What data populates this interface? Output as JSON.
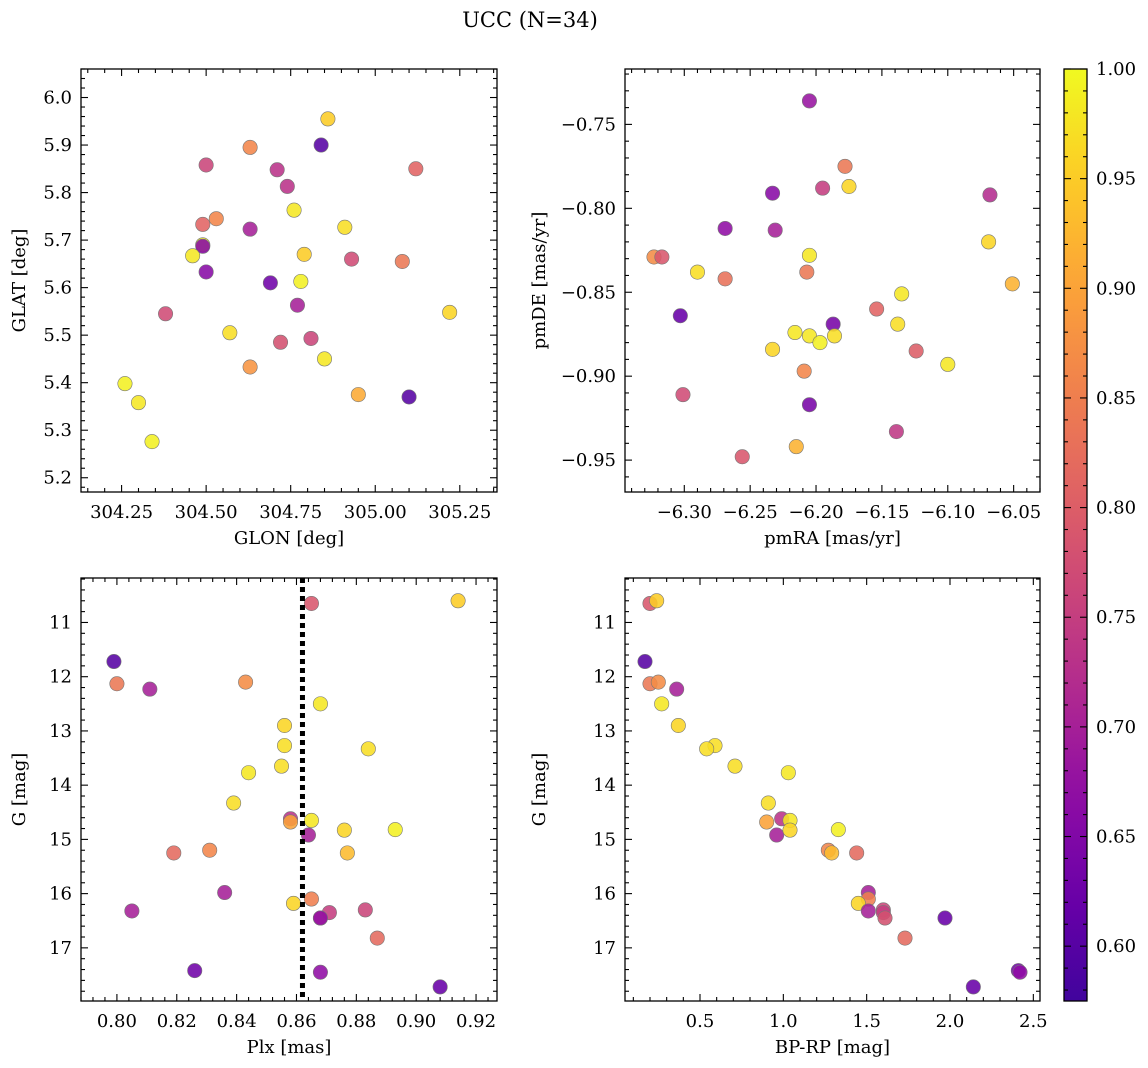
{
  "figure": {
    "title": "UCC (N=34)"
  },
  "colormap": "plasma",
  "colorbar": {
    "range": [
      0.575,
      1.0
    ],
    "ticks": [
      0.6,
      0.65,
      0.7,
      0.75,
      0.8,
      0.85,
      0.9,
      0.95,
      1.0
    ],
    "tick_labels": [
      "0.60",
      "0.65",
      "0.70",
      "0.75",
      "0.80",
      "0.85",
      "0.90",
      "0.95",
      "1.00"
    ]
  },
  "chart_data": [
    {
      "type": "scatter",
      "xlabel": "GLON [deg]",
      "ylabel": "GLAT [deg]",
      "xlim": [
        304.13,
        305.36
      ],
      "ylim": [
        5.17,
        6.06
      ],
      "xticks": [
        304.25,
        304.5,
        304.75,
        305.0,
        305.25
      ],
      "xtick_labels": [
        "304.25",
        "304.50",
        "304.75",
        "305.00",
        "305.25"
      ],
      "yticks": [
        5.2,
        5.3,
        5.4,
        5.5,
        5.6,
        5.7,
        5.8,
        5.9,
        6.0
      ],
      "ytick_labels": [
        "5.2",
        "5.3",
        "5.4",
        "5.5",
        "5.6",
        "5.7",
        "5.8",
        "5.9",
        "6.0"
      ],
      "invert_y": false,
      "points": [
        {
          "x": 304.86,
          "y": 5.955,
          "c": 0.95
        },
        {
          "x": 304.84,
          "y": 5.9,
          "c": 0.6
        },
        {
          "x": 304.63,
          "y": 5.895,
          "c": 0.86
        },
        {
          "x": 304.5,
          "y": 5.858,
          "c": 0.76
        },
        {
          "x": 305.12,
          "y": 5.85,
          "c": 0.81
        },
        {
          "x": 304.71,
          "y": 5.848,
          "c": 0.73
        },
        {
          "x": 304.74,
          "y": 5.813,
          "c": 0.73
        },
        {
          "x": 304.76,
          "y": 5.763,
          "c": 0.98
        },
        {
          "x": 304.53,
          "y": 5.745,
          "c": 0.86
        },
        {
          "x": 304.49,
          "y": 5.733,
          "c": 0.81
        },
        {
          "x": 304.91,
          "y": 5.727,
          "c": 0.97
        },
        {
          "x": 304.63,
          "y": 5.723,
          "c": 0.7
        },
        {
          "x": 304.49,
          "y": 5.69,
          "c": 0.99
        },
        {
          "x": 304.49,
          "y": 5.687,
          "c": 0.66
        },
        {
          "x": 304.79,
          "y": 5.67,
          "c": 0.95
        },
        {
          "x": 304.46,
          "y": 5.667,
          "c": 0.98
        },
        {
          "x": 304.93,
          "y": 5.66,
          "c": 0.77
        },
        {
          "x": 305.08,
          "y": 5.655,
          "c": 0.84
        },
        {
          "x": 304.5,
          "y": 5.633,
          "c": 0.66
        },
        {
          "x": 304.78,
          "y": 5.613,
          "c": 0.99
        },
        {
          "x": 304.69,
          "y": 5.61,
          "c": 0.63
        },
        {
          "x": 304.77,
          "y": 5.563,
          "c": 0.7
        },
        {
          "x": 305.22,
          "y": 5.548,
          "c": 0.96
        },
        {
          "x": 304.38,
          "y": 5.545,
          "c": 0.77
        },
        {
          "x": 304.57,
          "y": 5.505,
          "c": 0.97
        },
        {
          "x": 304.81,
          "y": 5.493,
          "c": 0.76
        },
        {
          "x": 304.72,
          "y": 5.485,
          "c": 0.78
        },
        {
          "x": 304.85,
          "y": 5.45,
          "c": 0.98
        },
        {
          "x": 304.63,
          "y": 5.433,
          "c": 0.88
        },
        {
          "x": 304.26,
          "y": 5.398,
          "c": 0.99
        },
        {
          "x": 304.95,
          "y": 5.375,
          "c": 0.91
        },
        {
          "x": 305.1,
          "y": 5.37,
          "c": 0.6
        },
        {
          "x": 304.3,
          "y": 5.358,
          "c": 0.98
        },
        {
          "x": 304.34,
          "y": 5.276,
          "c": 0.99
        }
      ]
    },
    {
      "type": "scatter",
      "xlabel": "pmRA [mas/yr]",
      "ylabel": "pmDE [mas/yr]",
      "xlim": [
        -6.345,
        -6.03
      ],
      "ylim": [
        -0.969,
        -0.717
      ],
      "xticks": [
        -6.3,
        -6.25,
        -6.2,
        -6.15,
        -6.1,
        -6.05
      ],
      "xtick_labels": [
        "−6.30",
        "−6.25",
        "−6.20",
        "−6.15",
        "−6.10",
        "−6.05"
      ],
      "yticks": [
        -0.95,
        -0.9,
        -0.85,
        -0.8,
        -0.75
      ],
      "ytick_labels": [
        "−0.95",
        "−0.90",
        "−0.85",
        "−0.80",
        "−0.75"
      ],
      "invert_y": false,
      "points": [
        {
          "x": -6.205,
          "y": -0.736,
          "c": 0.68
        },
        {
          "x": -6.178,
          "y": -0.775,
          "c": 0.84
        },
        {
          "x": -6.175,
          "y": -0.787,
          "c": 0.96
        },
        {
          "x": -6.195,
          "y": -0.788,
          "c": 0.75
        },
        {
          "x": -6.233,
          "y": -0.791,
          "c": 0.66
        },
        {
          "x": -6.068,
          "y": -0.792,
          "c": 0.72
        },
        {
          "x": -6.269,
          "y": -0.812,
          "c": 0.67
        },
        {
          "x": -6.231,
          "y": -0.813,
          "c": 0.7
        },
        {
          "x": -6.069,
          "y": -0.82,
          "c": 0.96
        },
        {
          "x": -6.323,
          "y": -0.829,
          "c": 0.87
        },
        {
          "x": -6.317,
          "y": -0.829,
          "c": 0.79
        },
        {
          "x": -6.205,
          "y": -0.828,
          "c": 0.98
        },
        {
          "x": -6.207,
          "y": -0.838,
          "c": 0.84
        },
        {
          "x": -6.29,
          "y": -0.838,
          "c": 0.97
        },
        {
          "x": -6.269,
          "y": -0.842,
          "c": 0.83
        },
        {
          "x": -6.051,
          "y": -0.845,
          "c": 0.92
        },
        {
          "x": -6.135,
          "y": -0.851,
          "c": 0.98
        },
        {
          "x": -6.154,
          "y": -0.86,
          "c": 0.81
        },
        {
          "x": -6.303,
          "y": -0.864,
          "c": 0.62
        },
        {
          "x": -6.187,
          "y": -0.869,
          "c": 0.64
        },
        {
          "x": -6.138,
          "y": -0.869,
          "c": 0.97
        },
        {
          "x": -6.216,
          "y": -0.874,
          "c": 0.98
        },
        {
          "x": -6.205,
          "y": -0.876,
          "c": 0.98
        },
        {
          "x": -6.186,
          "y": -0.876,
          "c": 0.97
        },
        {
          "x": -6.197,
          "y": -0.88,
          "c": 0.99
        },
        {
          "x": -6.233,
          "y": -0.884,
          "c": 0.96
        },
        {
          "x": -6.124,
          "y": -0.885,
          "c": 0.8
        },
        {
          "x": -6.1,
          "y": -0.893,
          "c": 0.98
        },
        {
          "x": -6.209,
          "y": -0.897,
          "c": 0.86
        },
        {
          "x": -6.301,
          "y": -0.911,
          "c": 0.77
        },
        {
          "x": -6.205,
          "y": -0.917,
          "c": 0.64
        },
        {
          "x": -6.139,
          "y": -0.933,
          "c": 0.74
        },
        {
          "x": -6.215,
          "y": -0.942,
          "c": 0.92
        },
        {
          "x": -6.256,
          "y": -0.948,
          "c": 0.79
        }
      ]
    },
    {
      "type": "scatter",
      "xlabel": "Plx [mas]",
      "ylabel": "G [mag]",
      "xlim": [
        0.788,
        0.927
      ],
      "ylim": [
        10.18,
        17.98
      ],
      "xticks": [
        0.8,
        0.82,
        0.84,
        0.86,
        0.88,
        0.9,
        0.92
      ],
      "xtick_labels": [
        "0.80",
        "0.82",
        "0.84",
        "0.86",
        "0.88",
        "0.90",
        "0.92"
      ],
      "yticks": [
        11,
        12,
        13,
        14,
        15,
        16,
        17
      ],
      "ytick_labels": [
        "11",
        "12",
        "13",
        "14",
        "15",
        "16",
        "17"
      ],
      "invert_y": true,
      "vline": {
        "x": 0.862,
        "style": "dotted"
      },
      "points": [
        {
          "x": 0.914,
          "y": 10.6,
          "c": 0.95
        },
        {
          "x": 0.865,
          "y": 10.65,
          "c": 0.79
        },
        {
          "x": 0.799,
          "y": 11.72,
          "c": 0.6
        },
        {
          "x": 0.8,
          "y": 12.13,
          "c": 0.84
        },
        {
          "x": 0.843,
          "y": 12.1,
          "c": 0.87
        },
        {
          "x": 0.811,
          "y": 12.23,
          "c": 0.7
        },
        {
          "x": 0.868,
          "y": 12.5,
          "c": 0.98
        },
        {
          "x": 0.856,
          "y": 12.9,
          "c": 0.96
        },
        {
          "x": 0.856,
          "y": 13.27,
          "c": 0.97
        },
        {
          "x": 0.884,
          "y": 13.33,
          "c": 0.97
        },
        {
          "x": 0.855,
          "y": 13.65,
          "c": 0.97
        },
        {
          "x": 0.844,
          "y": 13.77,
          "c": 0.98
        },
        {
          "x": 0.839,
          "y": 14.33,
          "c": 0.97
        },
        {
          "x": 0.858,
          "y": 14.62,
          "c": 0.73
        },
        {
          "x": 0.858,
          "y": 14.68,
          "c": 0.9
        },
        {
          "x": 0.865,
          "y": 14.65,
          "c": 0.98
        },
        {
          "x": 0.864,
          "y": 14.92,
          "c": 0.7
        },
        {
          "x": 0.876,
          "y": 14.83,
          "c": 0.96
        },
        {
          "x": 0.893,
          "y": 14.82,
          "c": 0.99
        },
        {
          "x": 0.831,
          "y": 15.2,
          "c": 0.86
        },
        {
          "x": 0.819,
          "y": 15.25,
          "c": 0.82
        },
        {
          "x": 0.877,
          "y": 15.25,
          "c": 0.93
        },
        {
          "x": 0.836,
          "y": 15.98,
          "c": 0.7
        },
        {
          "x": 0.865,
          "y": 16.1,
          "c": 0.85
        },
        {
          "x": 0.859,
          "y": 16.18,
          "c": 0.96
        },
        {
          "x": 0.805,
          "y": 16.32,
          "c": 0.7
        },
        {
          "x": 0.883,
          "y": 16.3,
          "c": 0.76
        },
        {
          "x": 0.871,
          "y": 16.35,
          "c": 0.75
        },
        {
          "x": 0.868,
          "y": 16.45,
          "c": 0.78
        },
        {
          "x": 0.868,
          "y": 16.45,
          "c": 0.67
        },
        {
          "x": 0.887,
          "y": 16.82,
          "c": 0.82
        },
        {
          "x": 0.826,
          "y": 17.42,
          "c": 0.63
        },
        {
          "x": 0.868,
          "y": 17.45,
          "c": 0.67
        },
        {
          "x": 0.908,
          "y": 17.72,
          "c": 0.62
        }
      ]
    },
    {
      "type": "scatter",
      "xlabel": "BP-RP [mag]",
      "ylabel": "G [mag]",
      "xlim": [
        0.05,
        2.54
      ],
      "ylim": [
        10.18,
        17.98
      ],
      "xticks": [
        0.5,
        1.0,
        1.5,
        2.0,
        2.5
      ],
      "xtick_labels": [
        "0.5",
        "1.0",
        "1.5",
        "2.0",
        "2.5"
      ],
      "yticks": [
        11,
        12,
        13,
        14,
        15,
        16,
        17
      ],
      "ytick_labels": [
        "11",
        "12",
        "13",
        "14",
        "15",
        "16",
        "17"
      ],
      "invert_y": true,
      "points": [
        {
          "x": 0.2,
          "y": 10.65,
          "c": 0.79
        },
        {
          "x": 0.24,
          "y": 10.6,
          "c": 0.95
        },
        {
          "x": 0.17,
          "y": 11.72,
          "c": 0.6
        },
        {
          "x": 0.2,
          "y": 12.13,
          "c": 0.84
        },
        {
          "x": 0.25,
          "y": 12.1,
          "c": 0.87
        },
        {
          "x": 0.36,
          "y": 12.23,
          "c": 0.7
        },
        {
          "x": 0.27,
          "y": 12.5,
          "c": 0.98
        },
        {
          "x": 0.37,
          "y": 12.9,
          "c": 0.96
        },
        {
          "x": 0.59,
          "y": 13.27,
          "c": 0.97
        },
        {
          "x": 0.54,
          "y": 13.33,
          "c": 0.97
        },
        {
          "x": 0.71,
          "y": 13.65,
          "c": 0.97
        },
        {
          "x": 1.03,
          "y": 13.77,
          "c": 0.98
        },
        {
          "x": 0.91,
          "y": 14.33,
          "c": 0.97
        },
        {
          "x": 0.99,
          "y": 14.62,
          "c": 0.73
        },
        {
          "x": 0.9,
          "y": 14.68,
          "c": 0.9
        },
        {
          "x": 1.04,
          "y": 14.65,
          "c": 0.98
        },
        {
          "x": 0.96,
          "y": 14.92,
          "c": 0.7
        },
        {
          "x": 1.04,
          "y": 14.83,
          "c": 0.96
        },
        {
          "x": 1.33,
          "y": 14.82,
          "c": 0.99
        },
        {
          "x": 1.27,
          "y": 15.2,
          "c": 0.86
        },
        {
          "x": 1.44,
          "y": 15.25,
          "c": 0.82
        },
        {
          "x": 1.29,
          "y": 15.25,
          "c": 0.93
        },
        {
          "x": 1.51,
          "y": 15.98,
          "c": 0.7
        },
        {
          "x": 1.51,
          "y": 16.1,
          "c": 0.85
        },
        {
          "x": 1.45,
          "y": 16.18,
          "c": 0.96
        },
        {
          "x": 1.51,
          "y": 16.32,
          "c": 0.7
        },
        {
          "x": 1.6,
          "y": 16.3,
          "c": 0.76
        },
        {
          "x": 1.6,
          "y": 16.35,
          "c": 0.75
        },
        {
          "x": 1.61,
          "y": 16.45,
          "c": 0.78
        },
        {
          "x": 1.97,
          "y": 16.45,
          "c": 0.62
        },
        {
          "x": 1.73,
          "y": 16.82,
          "c": 0.82
        },
        {
          "x": 2.41,
          "y": 17.42,
          "c": 0.63
        },
        {
          "x": 2.42,
          "y": 17.45,
          "c": 0.67
        },
        {
          "x": 2.14,
          "y": 17.72,
          "c": 0.62
        }
      ]
    }
  ]
}
